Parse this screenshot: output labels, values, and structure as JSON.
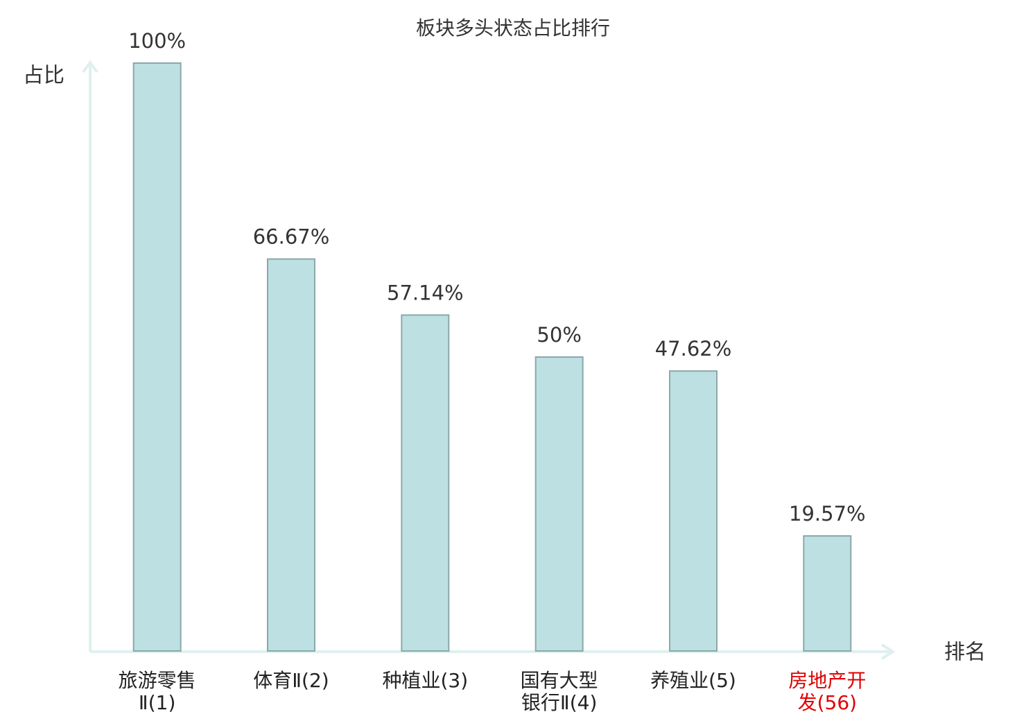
{
  "chart_data": {
    "type": "bar",
    "title": "板块多头状态占比排行",
    "y_label": "占比",
    "x_label": "排名",
    "categories": [
      "旅游零售Ⅱ(1)",
      "体育Ⅱ(2)",
      "种植业(3)",
      "国有大型银行Ⅱ(4)",
      "养殖业(5)",
      "房地产开发(56)"
    ],
    "values": [
      100,
      66.67,
      57.14,
      50,
      47.62,
      19.57
    ],
    "value_labels": [
      "100%",
      "66.67%",
      "57.14%",
      "50%",
      "47.62%",
      "19.57%"
    ],
    "color": "#bde0e2",
    "edge_color": "#8aa8aa",
    "label_colors": [
      "#222222",
      "#222222",
      "#222222",
      "#222222",
      "#222222",
      "#e00000"
    ],
    "ylim": [
      0,
      100
    ]
  }
}
